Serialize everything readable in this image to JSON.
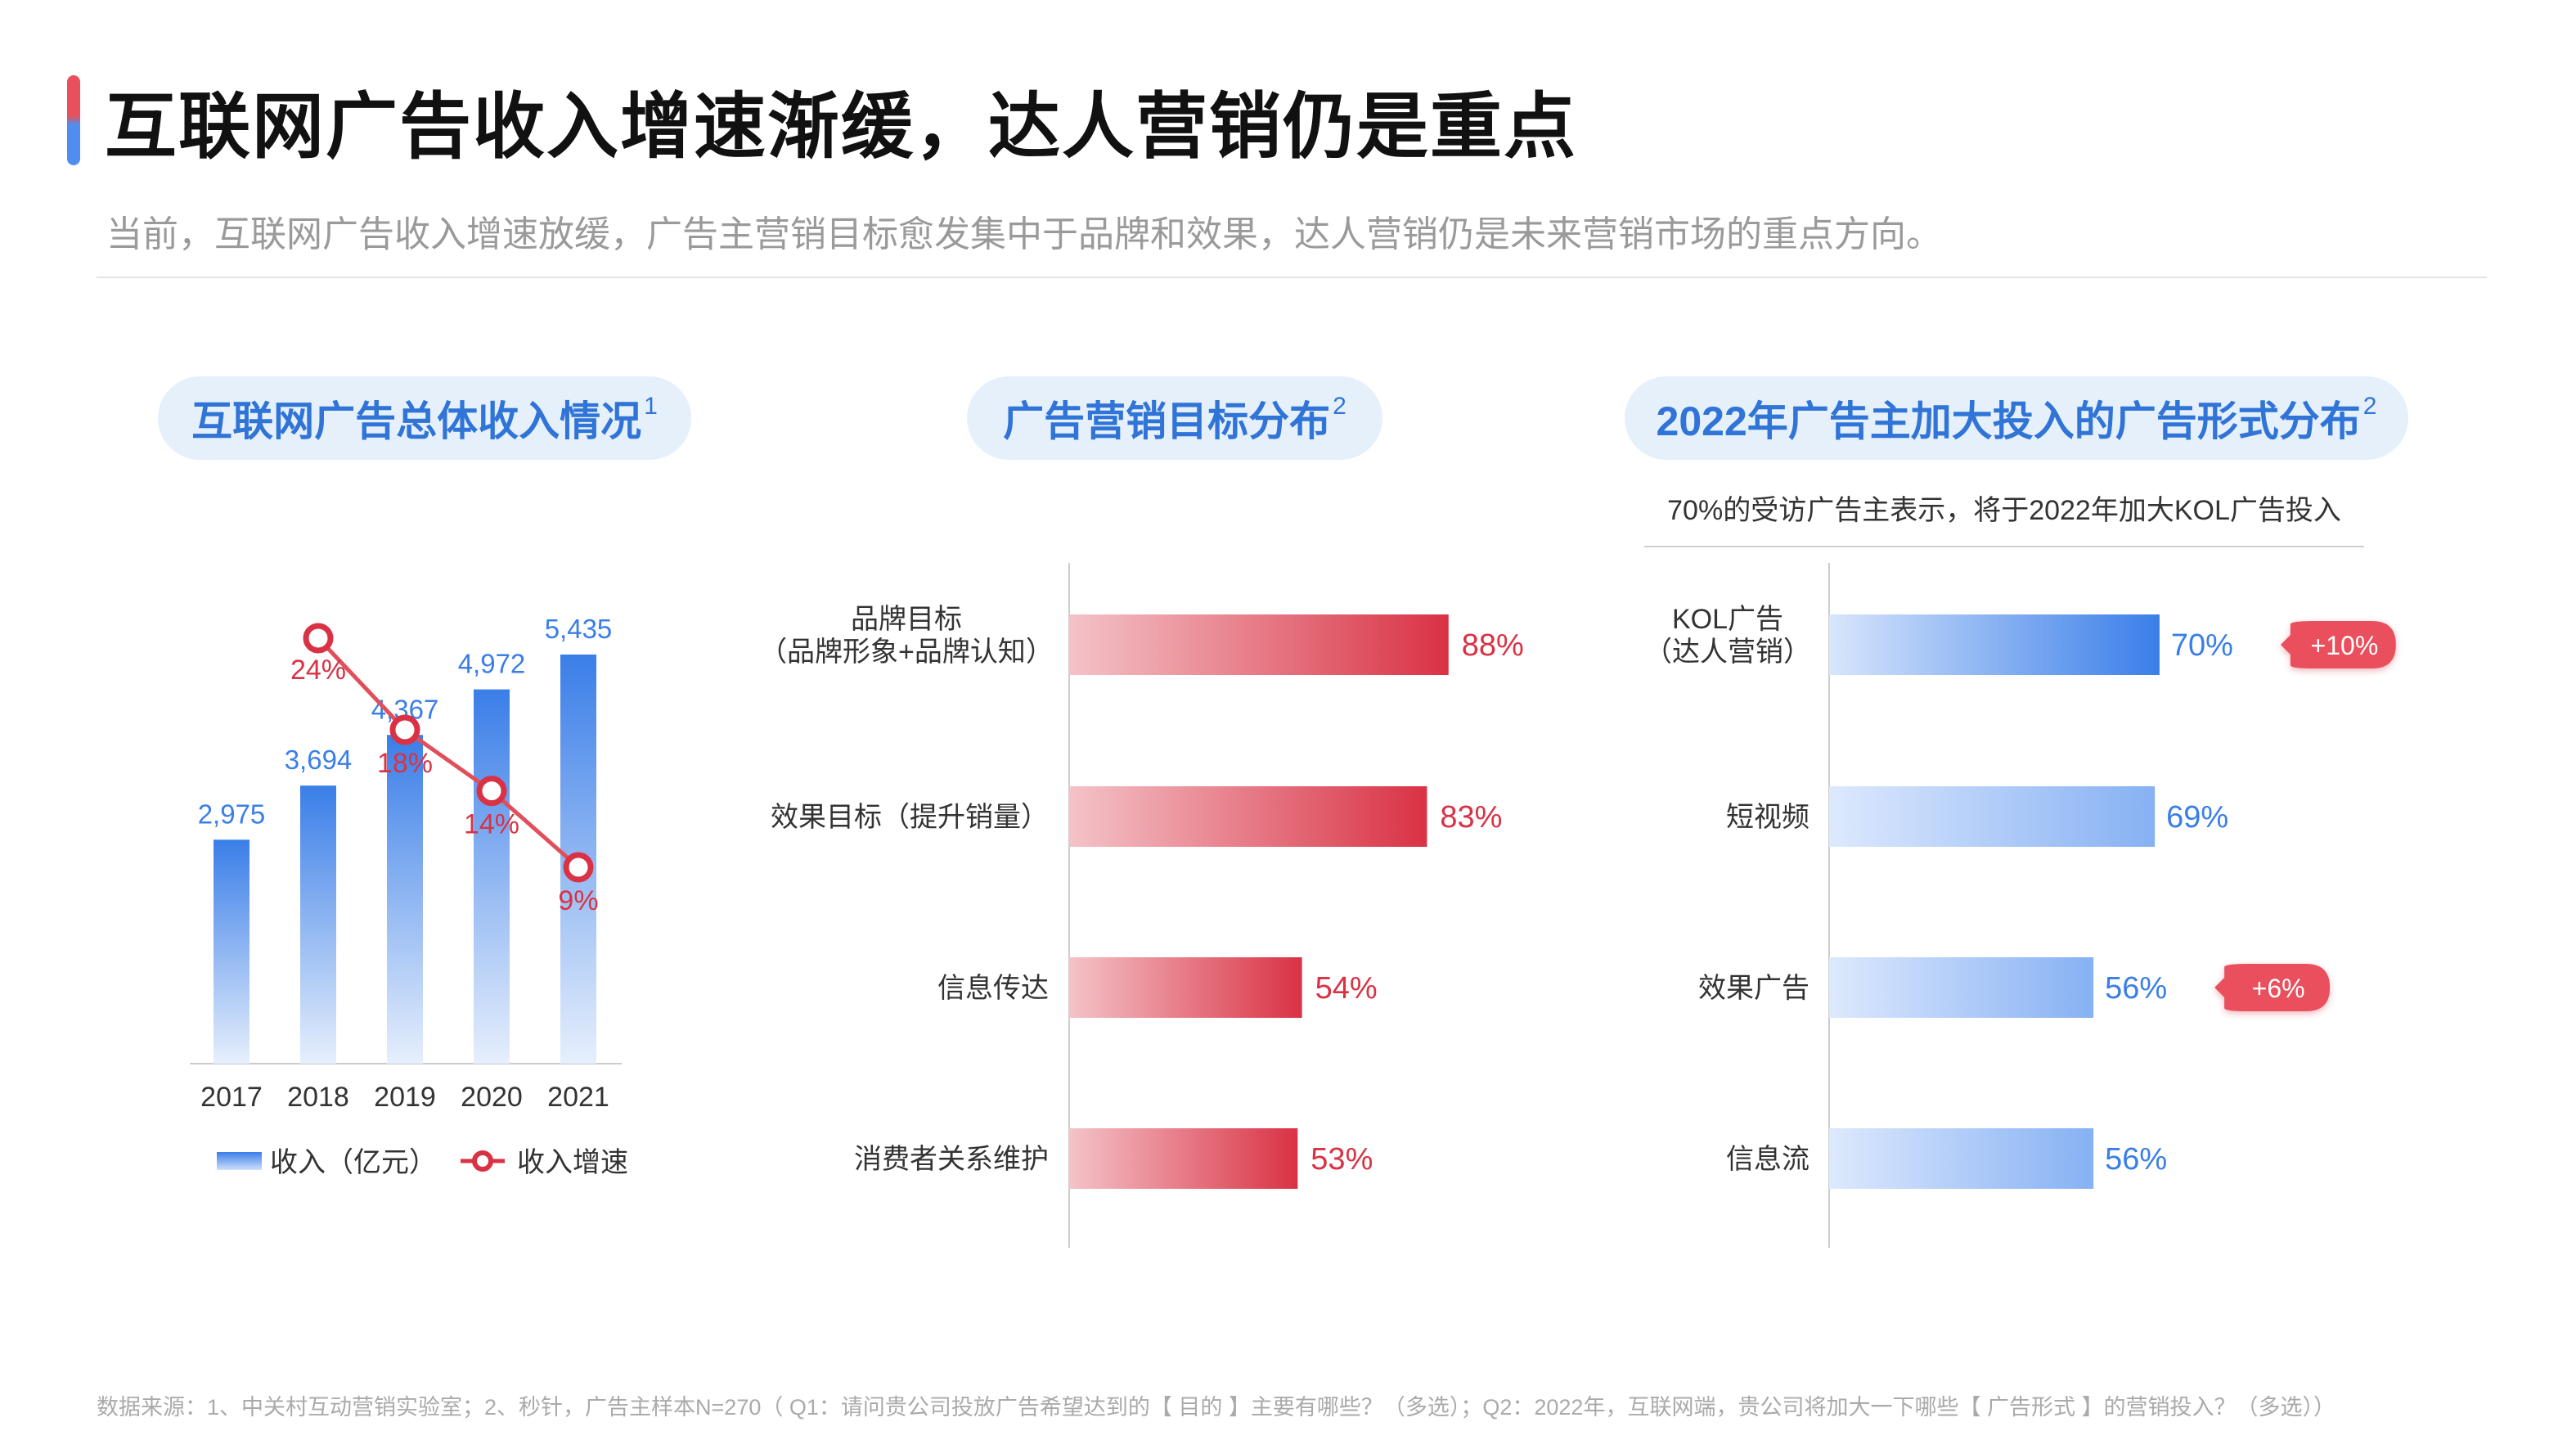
{
  "header": {
    "title": "互联网广告收入增速渐缓，达人营销仍是重点",
    "subtitle": "当前，互联网广告收入增速放缓，广告主营销目标愈发集中于品牌和效果，达人营销仍是未来营销市场的重点方向。"
  },
  "sections": [
    {
      "title": "互联网广告总体收入情况",
      "footnote": "1"
    },
    {
      "title": "广告营销目标分布",
      "footnote": "2"
    },
    {
      "title": "2022年广告主加大投入的广告形式分布",
      "footnote": "2"
    }
  ],
  "note": "70%的受访广告主表示，将于2022年加大KOL广告投入",
  "footer": "数据来源：1、中关村互动营销实验室；2、秒针，广告主样本N=270（ Q1：请问贵公司投放广告希望达到的【 目的 】主要有哪些？（多选）；Q2：2022年，互联网端，贵公司将加大一下哪些【 广告形式 】的营销投入？（多选））",
  "colors": {
    "blue": "#3a7ee8",
    "blue_light": "#dce9fc",
    "red": "#d93244",
    "red_light": "#f4c3c8",
    "pill_bg": "#e6f0fb",
    "pill_text": "#2f74d6"
  },
  "chart_data": [
    {
      "type": "bar",
      "categories": [
        "2017",
        "2018",
        "2019",
        "2020",
        "2021"
      ],
      "series": [
        {
          "name": "收入（亿元）",
          "type": "bar",
          "values": [
            2975,
            3694,
            4367,
            4972,
            5435
          ],
          "labels": [
            "2,975",
            "3,694",
            "4,367",
            "4,972",
            "5,435"
          ]
        },
        {
          "name": "收入增速",
          "type": "line",
          "values": [
            null,
            24,
            18,
            14,
            9
          ],
          "labels": [
            "",
            "24%",
            "18%",
            "14%",
            "9%"
          ]
        }
      ],
      "legend": "bottom"
    },
    {
      "type": "bar",
      "orientation": "horizontal",
      "categories": [
        [
          "品牌目标",
          "（品牌形象+品牌认知）"
        ],
        [
          "效果目标（提升销量）"
        ],
        [
          "信息传达"
        ],
        [
          "消费者关系维护"
        ]
      ],
      "values": [
        88,
        83,
        54,
        53
      ],
      "labels": [
        "88%",
        "83%",
        "54%",
        "53%"
      ],
      "xlim": [
        0,
        100
      ]
    },
    {
      "type": "bar",
      "orientation": "horizontal",
      "categories": [
        [
          "KOL广告",
          "（达人营销）"
        ],
        [
          "短视频"
        ],
        [
          "效果广告"
        ],
        [
          "信息流"
        ]
      ],
      "values": [
        70,
        69,
        56,
        56
      ],
      "labels": [
        "70%",
        "69%",
        "56%",
        "56%"
      ],
      "badges": [
        "+10%",
        "",
        "+6%",
        ""
      ],
      "xlim": [
        0,
        100
      ]
    }
  ]
}
